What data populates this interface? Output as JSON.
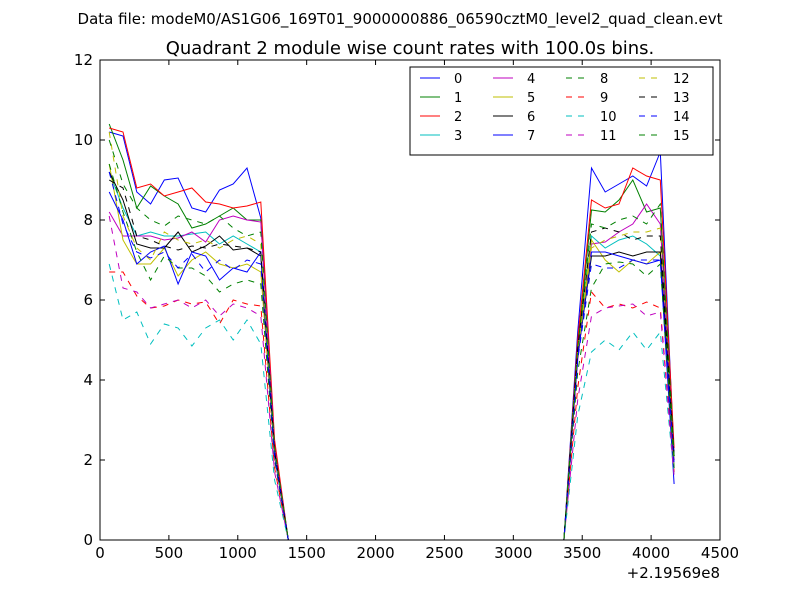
{
  "chart_data": {
    "type": "line",
    "suptitle": "Data file: modeM0/AS1G06_169T01_9000000886_06590cztM0_level2_quad_clean.evt",
    "title": "Quadrant 2 module wise count rates with 100.0s bins.",
    "xlabel": "",
    "ylabel": "",
    "x_offset_label": "+2.19569e8",
    "xlim": [
      0,
      4500
    ],
    "ylim": [
      0,
      12
    ],
    "xticks": [
      0,
      500,
      1000,
      1500,
      2000,
      2500,
      3000,
      3500,
      4000,
      4500
    ],
    "yticks": [
      0,
      2,
      4,
      6,
      8,
      10,
      12
    ],
    "grid": false,
    "legend_location": "top-right",
    "legend_columns": 4,
    "x": [
      67,
      167,
      267,
      367,
      467,
      567,
      667,
      767,
      867,
      967,
      1067,
      1167,
      1267,
      1367,
      1467,
      1567,
      1667,
      1767,
      1867,
      1967,
      2067,
      2167,
      2267,
      2367,
      2467,
      2567,
      2667,
      2767,
      2867,
      2967,
      3067,
      3167,
      3267,
      3367,
      3467,
      3567,
      3667,
      3767,
      3867,
      3967,
      4067,
      4167
    ],
    "series": [
      {
        "name": "0",
        "color": "#0000ff",
        "dash": "solid",
        "values": [
          10.2,
          10.1,
          8.7,
          8.4,
          9.0,
          9.05,
          8.3,
          8.2,
          8.75,
          8.9,
          9.3,
          8.05,
          2.4,
          0.0,
          0.0,
          0.0,
          0.0,
          0.0,
          0.0,
          0.0,
          0.0,
          0.0,
          0.0,
          0.0,
          0.0,
          0.0,
          0.0,
          0.0,
          0.0,
          0.0,
          0.0,
          0.0,
          0.0,
          0.0,
          5.2,
          9.3,
          8.7,
          8.9,
          9.1,
          8.85,
          9.7,
          2.1
        ]
      },
      {
        "name": "1",
        "color": "#008000",
        "dash": "solid",
        "values": [
          10.4,
          9.5,
          8.3,
          8.85,
          8.6,
          8.4,
          7.8,
          7.9,
          8.1,
          8.3,
          8.0,
          8.0,
          2.3,
          0.0,
          0.0,
          0.0,
          0.0,
          0.0,
          0.0,
          0.0,
          0.0,
          0.0,
          0.0,
          0.0,
          0.0,
          0.0,
          0.0,
          0.0,
          0.0,
          0.0,
          0.0,
          0.0,
          0.0,
          0.0,
          4.8,
          8.25,
          8.2,
          8.5,
          9.0,
          8.2,
          8.3,
          2.0
        ]
      },
      {
        "name": "2",
        "color": "#ff0000",
        "dash": "solid",
        "values": [
          10.3,
          10.2,
          8.8,
          8.9,
          8.6,
          8.7,
          8.8,
          8.45,
          8.4,
          8.3,
          8.35,
          8.45,
          2.5,
          0.0,
          0.0,
          0.0,
          0.0,
          0.0,
          0.0,
          0.0,
          0.0,
          0.0,
          0.0,
          0.0,
          0.0,
          0.0,
          0.0,
          0.0,
          0.0,
          0.0,
          0.0,
          0.0,
          0.0,
          0.0,
          5.0,
          8.5,
          8.3,
          8.4,
          9.3,
          9.1,
          9.0,
          2.3
        ]
      },
      {
        "name": "3",
        "color": "#00bfbf",
        "dash": "solid",
        "values": [
          9.2,
          8.3,
          7.6,
          7.7,
          7.6,
          7.6,
          7.65,
          7.7,
          7.4,
          7.6,
          7.4,
          7.2,
          2.2,
          0.0,
          0.0,
          0.0,
          0.0,
          0.0,
          0.0,
          0.0,
          0.0,
          0.0,
          0.0,
          0.0,
          0.0,
          0.0,
          0.0,
          0.0,
          0.0,
          0.0,
          0.0,
          0.0,
          0.0,
          0.0,
          4.6,
          7.6,
          7.3,
          7.5,
          7.6,
          7.4,
          7.1,
          1.9
        ]
      },
      {
        "name": "4",
        "color": "#bf00bf",
        "dash": "solid",
        "values": [
          8.2,
          7.6,
          7.6,
          7.6,
          7.5,
          7.55,
          7.7,
          7.45,
          8.0,
          8.1,
          8.0,
          7.95,
          2.3,
          0.0,
          0.0,
          0.0,
          0.0,
          0.0,
          0.0,
          0.0,
          0.0,
          0.0,
          0.0,
          0.0,
          0.0,
          0.0,
          0.0,
          0.0,
          0.0,
          0.0,
          0.0,
          0.0,
          0.0,
          0.0,
          4.5,
          7.4,
          7.45,
          7.7,
          7.9,
          8.4,
          7.9,
          2.0
        ]
      },
      {
        "name": "5",
        "color": "#bfbf00",
        "dash": "solid",
        "values": [
          9.4,
          7.5,
          6.9,
          6.9,
          7.3,
          6.6,
          7.0,
          7.2,
          6.9,
          6.8,
          6.9,
          6.7,
          2.1,
          0.0,
          0.0,
          0.0,
          0.0,
          0.0,
          0.0,
          0.0,
          0.0,
          0.0,
          0.0,
          0.0,
          0.0,
          0.0,
          0.0,
          0.0,
          0.0,
          0.0,
          0.0,
          0.0,
          0.0,
          0.0,
          4.7,
          7.5,
          7.0,
          6.7,
          7.0,
          6.9,
          7.2,
          1.8
        ]
      },
      {
        "name": "6",
        "color": "#000000",
        "dash": "solid",
        "values": [
          9.2,
          8.5,
          7.4,
          7.3,
          7.3,
          7.7,
          7.2,
          7.35,
          7.6,
          7.25,
          7.3,
          7.1,
          2.2,
          0.0,
          0.0,
          0.0,
          0.0,
          0.0,
          0.0,
          0.0,
          0.0,
          0.0,
          0.0,
          0.0,
          0.0,
          0.0,
          0.0,
          0.0,
          0.0,
          0.0,
          0.0,
          0.0,
          0.0,
          0.0,
          4.6,
          7.1,
          7.1,
          7.2,
          7.1,
          7.2,
          7.2,
          2.1
        ]
      },
      {
        "name": "7",
        "color": "#0000ff",
        "dash": "solid",
        "values": [
          8.7,
          8.0,
          6.9,
          7.2,
          7.35,
          6.4,
          7.2,
          7.1,
          6.5,
          6.8,
          6.7,
          7.2,
          2.1,
          0.0,
          0.0,
          0.0,
          0.0,
          0.0,
          0.0,
          0.0,
          0.0,
          0.0,
          0.0,
          0.0,
          0.0,
          0.0,
          0.0,
          0.0,
          0.0,
          0.0,
          0.0,
          0.0,
          0.0,
          0.0,
          4.6,
          7.2,
          7.2,
          7.1,
          7.0,
          6.9,
          7.0,
          1.4
        ]
      },
      {
        "name": "8",
        "color": "#008000",
        "dash": "dashed",
        "values": [
          9.4,
          8.2,
          7.2,
          6.5,
          7.1,
          6.8,
          6.8,
          6.6,
          6.2,
          6.4,
          6.5,
          6.4,
          2.0,
          0.0,
          0.0,
          0.0,
          0.0,
          0.0,
          0.0,
          0.0,
          0.0,
          0.0,
          0.0,
          0.0,
          0.0,
          0.0,
          0.0,
          0.0,
          0.0,
          0.0,
          0.0,
          0.0,
          0.0,
          0.0,
          4.2,
          6.3,
          6.9,
          6.95,
          6.9,
          6.6,
          6.9,
          1.8
        ]
      },
      {
        "name": "9",
        "color": "#ff0000",
        "dash": "dashed",
        "values": [
          6.7,
          6.7,
          6.1,
          5.8,
          5.85,
          6.0,
          5.9,
          5.95,
          5.4,
          6.0,
          5.9,
          5.85,
          1.8,
          0.0,
          0.0,
          0.0,
          0.0,
          0.0,
          0.0,
          0.0,
          0.0,
          0.0,
          0.0,
          0.0,
          0.0,
          0.0,
          0.0,
          0.0,
          0.0,
          0.0,
          0.0,
          0.0,
          0.0,
          0.0,
          3.8,
          6.2,
          5.8,
          5.9,
          5.8,
          5.95,
          5.8,
          1.7
        ]
      },
      {
        "name": "10",
        "color": "#00bfbf",
        "dash": "dashed",
        "values": [
          6.9,
          5.5,
          5.7,
          4.9,
          5.4,
          5.3,
          4.85,
          5.3,
          5.5,
          5.0,
          5.5,
          4.9,
          1.5,
          0.0,
          0.0,
          0.0,
          0.0,
          0.0,
          0.0,
          0.0,
          0.0,
          0.0,
          0.0,
          0.0,
          0.0,
          0.0,
          0.0,
          0.0,
          0.0,
          0.0,
          0.0,
          0.0,
          0.0,
          0.0,
          3.1,
          4.7,
          5.0,
          4.75,
          5.2,
          4.75,
          5.2,
          1.6
        ]
      },
      {
        "name": "11",
        "color": "#bf00bf",
        "dash": "dashed",
        "values": [
          8.1,
          6.3,
          6.2,
          5.8,
          5.9,
          6.0,
          5.8,
          6.0,
          5.6,
          5.9,
          5.8,
          5.6,
          1.7,
          0.0,
          0.0,
          0.0,
          0.0,
          0.0,
          0.0,
          0.0,
          0.0,
          0.0,
          0.0,
          0.0,
          0.0,
          0.0,
          0.0,
          0.0,
          0.0,
          0.0,
          0.0,
          0.0,
          0.0,
          0.0,
          3.5,
          5.6,
          5.8,
          5.85,
          5.9,
          5.6,
          5.7,
          1.6
        ]
      },
      {
        "name": "12",
        "color": "#bfbf00",
        "dash": "dashed",
        "values": [
          10.2,
          8.1,
          7.3,
          7.0,
          7.7,
          7.5,
          7.4,
          7.5,
          7.3,
          7.5,
          7.6,
          7.4,
          2.2,
          0.0,
          0.0,
          0.0,
          0.0,
          0.0,
          0.0,
          0.0,
          0.0,
          0.0,
          0.0,
          0.0,
          0.0,
          0.0,
          0.0,
          0.0,
          0.0,
          0.0,
          0.0,
          0.0,
          0.0,
          0.0,
          4.7,
          7.3,
          7.5,
          7.6,
          7.7,
          7.7,
          7.8,
          2.0
        ]
      },
      {
        "name": "13",
        "color": "#000000",
        "dash": "dashed",
        "values": [
          9.0,
          8.8,
          7.6,
          7.5,
          7.35,
          7.25,
          7.35,
          7.3,
          7.4,
          7.35,
          7.3,
          7.2,
          2.2,
          0.0,
          0.0,
          0.0,
          0.0,
          0.0,
          0.0,
          0.0,
          0.0,
          0.0,
          0.0,
          0.0,
          0.0,
          0.0,
          0.0,
          0.0,
          0.0,
          0.0,
          0.0,
          0.0,
          0.0,
          0.0,
          4.8,
          7.7,
          7.8,
          7.7,
          7.5,
          7.6,
          7.6,
          2.1
        ]
      },
      {
        "name": "14",
        "color": "#0000ff",
        "dash": "dashed",
        "values": [
          9.2,
          7.9,
          7.2,
          7.05,
          7.2,
          6.8,
          7.15,
          6.7,
          7.0,
          6.75,
          7.0,
          6.9,
          2.1,
          0.0,
          0.0,
          0.0,
          0.0,
          0.0,
          0.0,
          0.0,
          0.0,
          0.0,
          0.0,
          0.0,
          0.0,
          0.0,
          0.0,
          0.0,
          0.0,
          0.0,
          0.0,
          0.0,
          0.0,
          0.0,
          4.5,
          6.9,
          6.8,
          6.8,
          7.0,
          7.0,
          7.0,
          1.9
        ]
      },
      {
        "name": "15",
        "color": "#008000",
        "dash": "dashed",
        "values": [
          10.0,
          8.9,
          8.3,
          8.0,
          7.85,
          8.1,
          8.0,
          7.9,
          8.1,
          7.8,
          7.6,
          7.7,
          2.3,
          0.0,
          0.0,
          0.0,
          0.0,
          0.0,
          0.0,
          0.0,
          0.0,
          0.0,
          0.0,
          0.0,
          0.0,
          0.0,
          0.0,
          0.0,
          0.0,
          0.0,
          0.0,
          0.0,
          0.0,
          0.0,
          4.8,
          7.9,
          7.8,
          8.0,
          8.1,
          7.9,
          8.4,
          2.1
        ]
      }
    ]
  }
}
